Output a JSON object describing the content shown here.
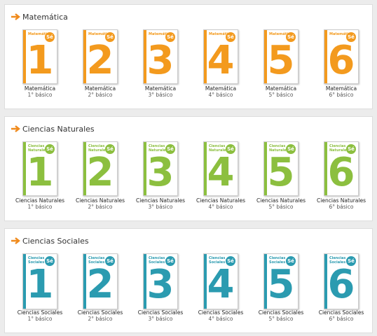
{
  "badge": "Sé",
  "sections": [
    {
      "title": "Matemática",
      "color": "#f39a1e",
      "books": [
        {
          "digit": "1",
          "title": "Matemática",
          "grade": "1° básico"
        },
        {
          "digit": "2",
          "title": "Matemática",
          "grade": "2° básico"
        },
        {
          "digit": "3",
          "title": "Matemática",
          "grade": "3° básico"
        },
        {
          "digit": "4",
          "title": "Matemática",
          "grade": "4° básico"
        },
        {
          "digit": "5",
          "title": "Matemática",
          "grade": "5° básico"
        },
        {
          "digit": "6",
          "title": "Matemática",
          "grade": "6° básico"
        }
      ]
    },
    {
      "title": "Ciencias Naturales",
      "color": "#8cbf3f",
      "books": [
        {
          "digit": "1",
          "title": "Ciencias Naturales",
          "grade": "1° básico"
        },
        {
          "digit": "2",
          "title": "Ciencias Naturales",
          "grade": "2° básico"
        },
        {
          "digit": "3",
          "title": "Ciencias Naturales",
          "grade": "3° básico"
        },
        {
          "digit": "4",
          "title": "Ciencias Naturales",
          "grade": "4° básico"
        },
        {
          "digit": "5",
          "title": "Ciencias Naturales",
          "grade": "5° básico"
        },
        {
          "digit": "6",
          "title": "Ciencias Naturales",
          "grade": "6° básico"
        }
      ]
    },
    {
      "title": "Ciencias Sociales",
      "color": "#2b9bb0",
      "books": [
        {
          "digit": "1",
          "title": "Ciencias Sociales",
          "grade": "1° básico"
        },
        {
          "digit": "2",
          "title": "Ciencias Sociales",
          "grade": "2° básico"
        },
        {
          "digit": "3",
          "title": "Ciencias Sociales",
          "grade": "3° básico"
        },
        {
          "digit": "4",
          "title": "Ciencias Sociales",
          "grade": "4° básico"
        },
        {
          "digit": "5",
          "title": "Ciencias Sociales",
          "grade": "5° básico"
        },
        {
          "digit": "6",
          "title": "Ciencias Sociales",
          "grade": "6° básico"
        }
      ]
    }
  ]
}
